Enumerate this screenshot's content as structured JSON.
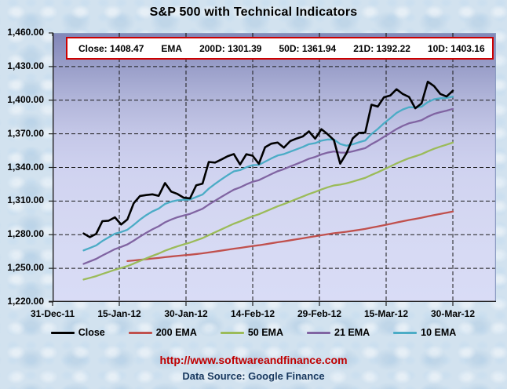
{
  "page": {
    "title": "S&P 500 with Technical Indicators"
  },
  "info_box": {
    "items": [
      "Close: 1408.47",
      "EMA",
      "200D: 1301.39",
      "50D: 1361.94",
      "21D: 1392.22",
      "10D: 1403.16"
    ]
  },
  "legend": {
    "items": [
      {
        "label": "Close",
        "color": "#000000"
      },
      {
        "label": "200 EMA",
        "color": "#C0504D"
      },
      {
        "label": "50 EMA",
        "color": "#9BBB59"
      },
      {
        "label": "21 EMA",
        "color": "#8064A2"
      },
      {
        "label": "10 EMA",
        "color": "#4BACC6"
      }
    ]
  },
  "footer": {
    "url": "http://www.softwareandfinance.com",
    "source": "Data Source: Google Finance"
  },
  "colors": {
    "close": "#000000",
    "ema200": "#C0504D",
    "ema50": "#9BBB59",
    "ema21": "#8064A2",
    "ema10": "#4BACC6",
    "info_border": "#CC0000",
    "url_text": "#C00000",
    "source_text": "#17375E",
    "grid": "#1a1a1a",
    "plot_border": "#8c9cc2"
  },
  "chart_data": {
    "type": "line",
    "title": "S&P 500 with Technical Indicators",
    "grid": "dashed",
    "legend_position": "bottom",
    "ylim": [
      1220,
      1460
    ],
    "y_step": 30,
    "y_tick_labels": [
      "1,460.00",
      "1,430.00",
      "1,400.00",
      "1,370.00",
      "1,340.00",
      "1,310.00",
      "1,280.00",
      "1,250.00",
      "1,220.00"
    ],
    "x_tick_labels": [
      "31-Dec-11",
      "15-Jan-12",
      "30-Jan-12",
      "14-Feb-12",
      "29-Feb-12",
      "15-Mar-12",
      "30-Mar-12"
    ],
    "dates": [
      "5-Jan",
      "6-Jan",
      "9-Jan",
      "10-Jan",
      "11-Jan",
      "12-Jan",
      "13-Jan",
      "17-Jan",
      "18-Jan",
      "19-Jan",
      "20-Jan",
      "23-Jan",
      "24-Jan",
      "25-Jan",
      "26-Jan",
      "27-Jan",
      "30-Jan",
      "31-Jan",
      "1-Feb",
      "2-Feb",
      "3-Feb",
      "6-Feb",
      "7-Feb",
      "8-Feb",
      "9-Feb",
      "10-Feb",
      "13-Feb",
      "14-Feb",
      "15-Feb",
      "16-Feb",
      "17-Feb",
      "21-Feb",
      "22-Feb",
      "23-Feb",
      "24-Feb",
      "27-Feb",
      "28-Feb",
      "29-Feb",
      "1-Mar",
      "2-Mar",
      "5-Mar",
      "6-Mar",
      "7-Mar",
      "8-Mar",
      "9-Mar",
      "12-Mar",
      "13-Mar",
      "14-Mar",
      "15-Mar",
      "16-Mar",
      "19-Mar",
      "20-Mar",
      "21-Mar",
      "22-Mar",
      "23-Mar",
      "26-Mar",
      "27-Mar",
      "28-Mar",
      "29-Mar",
      "30-Mar"
    ],
    "close": [
      1281.06,
      1277.81,
      1280.7,
      1292.08,
      1292.48,
      1295.5,
      1289.09,
      1293.67,
      1308.04,
      1314.5,
      1315.38,
      1316.0,
      1314.65,
      1326.06,
      1318.43,
      1316.33,
      1313.01,
      1312.41,
      1324.09,
      1325.54,
      1344.9,
      1344.33,
      1347.05,
      1349.96,
      1351.95,
      1342.64,
      1351.77,
      1350.5,
      1343.23,
      1358.04,
      1361.23,
      1362.21,
      1357.66,
      1363.46,
      1365.74,
      1367.59,
      1372.18,
      1365.68,
      1374.09,
      1369.63,
      1364.33,
      1343.36,
      1352.63,
      1365.91,
      1370.87,
      1371.09,
      1395.95,
      1394.28,
      1402.6,
      1404.17,
      1409.75,
      1405.52,
      1402.89,
      1392.78,
      1397.11,
      1416.51,
      1412.52,
      1405.54,
      1403.28,
      1408.47
    ],
    "series": [
      {
        "name": "200 EMA",
        "type": "ema",
        "period": 200,
        "seed": 1256.5,
        "start_index": 7,
        "color": "#C0504D",
        "end_value": 1301.39
      },
      {
        "name": "50 EMA",
        "type": "ema",
        "period": 50,
        "seed": 1240.0,
        "start_index": 0,
        "color": "#9BBB59",
        "end_value": 1361.94
      },
      {
        "name": "21 EMA",
        "type": "ema",
        "period": 21,
        "seed": 1254.0,
        "start_index": 0,
        "color": "#8064A2",
        "end_value": 1392.22
      },
      {
        "name": "10 EMA",
        "type": "ema",
        "period": 10,
        "seed": 1266.0,
        "start_index": 0,
        "color": "#4BACC6",
        "end_value": 1403.16
      },
      {
        "name": "Close",
        "type": "close",
        "color": "#000000",
        "end_value": 1408.47
      }
    ]
  }
}
